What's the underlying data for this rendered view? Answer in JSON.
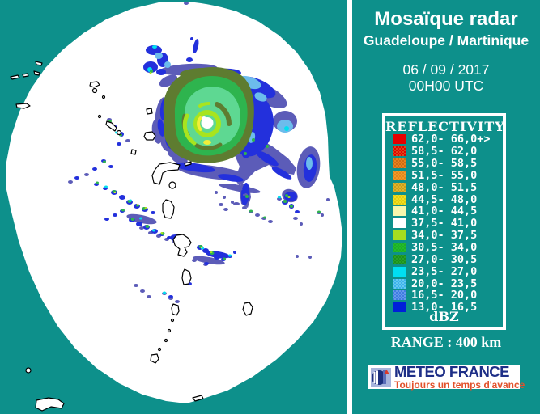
{
  "header": {
    "title": "Mosaïque radar",
    "subtitle": "Guadeloupe / Martinique",
    "date": "06 / 09 / 2017",
    "time": "00H00 UTC"
  },
  "legend": {
    "title": "REFLECTIVITY",
    "unit": "dBZ",
    "rows": [
      {
        "range": "62,0- 66,0+>",
        "c1": "#e60000",
        "c2": null
      },
      {
        "range": "58,5- 62,0",
        "c1": "#d94a1a",
        "c2": "#e60000"
      },
      {
        "range": "55,0- 58,5",
        "c1": "#cf6b15",
        "c2": "#e8821e"
      },
      {
        "range": "51,5- 55,0",
        "c1": "#e2861d",
        "c2": "#f09a28"
      },
      {
        "range": "48,0- 51,5",
        "c1": "#c89e1e",
        "c2": "#e0b42a"
      },
      {
        "range": "44,5- 48,0",
        "c1": "#e3cb12",
        "c2": "#f0e020"
      },
      {
        "range": "41,0- 44,5",
        "c1": "#f7f7ad",
        "c2": null
      },
      {
        "range": "37,5- 41,0",
        "c1": "#ffffff",
        "c2": null
      },
      {
        "range": "34,0- 37,5",
        "c1": "#a6dd1f",
        "c2": null
      },
      {
        "range": "30,5- 34,0",
        "c1": "#23bd2b",
        "c2": "#1fae27"
      },
      {
        "range": "27,0- 30,5",
        "c1": "#1e8e1e",
        "c2": "#27a327"
      },
      {
        "range": "23,5- 27,0",
        "c1": "#00dff2",
        "c2": null
      },
      {
        "range": "20,0- 23,5",
        "c1": "#3ab2ec",
        "c2": "#66c8f0"
      },
      {
        "range": "16,5- 20,0",
        "c1": "#3f7de2",
        "c2": "#6699ea"
      },
      {
        "range": "13,0- 16,5",
        "c1": "#001fd9",
        "c2": null
      }
    ]
  },
  "range_label": "RANGE : 400 km",
  "logo": {
    "name": "METEO FRANCE",
    "tagline": "Toujours un temps d'avance"
  },
  "colors": {
    "background_teal": "#0d908b",
    "coverage_white": "#ffffff",
    "island_outline": "#000000",
    "logo_blue": "#1e2f87",
    "logo_orange": "#e2512b",
    "echo_slate": "#5c5cb8",
    "echo_royal": "#2330dc",
    "echo_lightblue": "#6cbcec",
    "echo_cyan": "#00dff0",
    "echo_olive": "#5e7c30",
    "echo_green": "#2eb44e",
    "echo_seafoam": "#5ed892",
    "echo_chartreuse": "#a8e41e",
    "echo_yellow": "#f2ee3a"
  }
}
